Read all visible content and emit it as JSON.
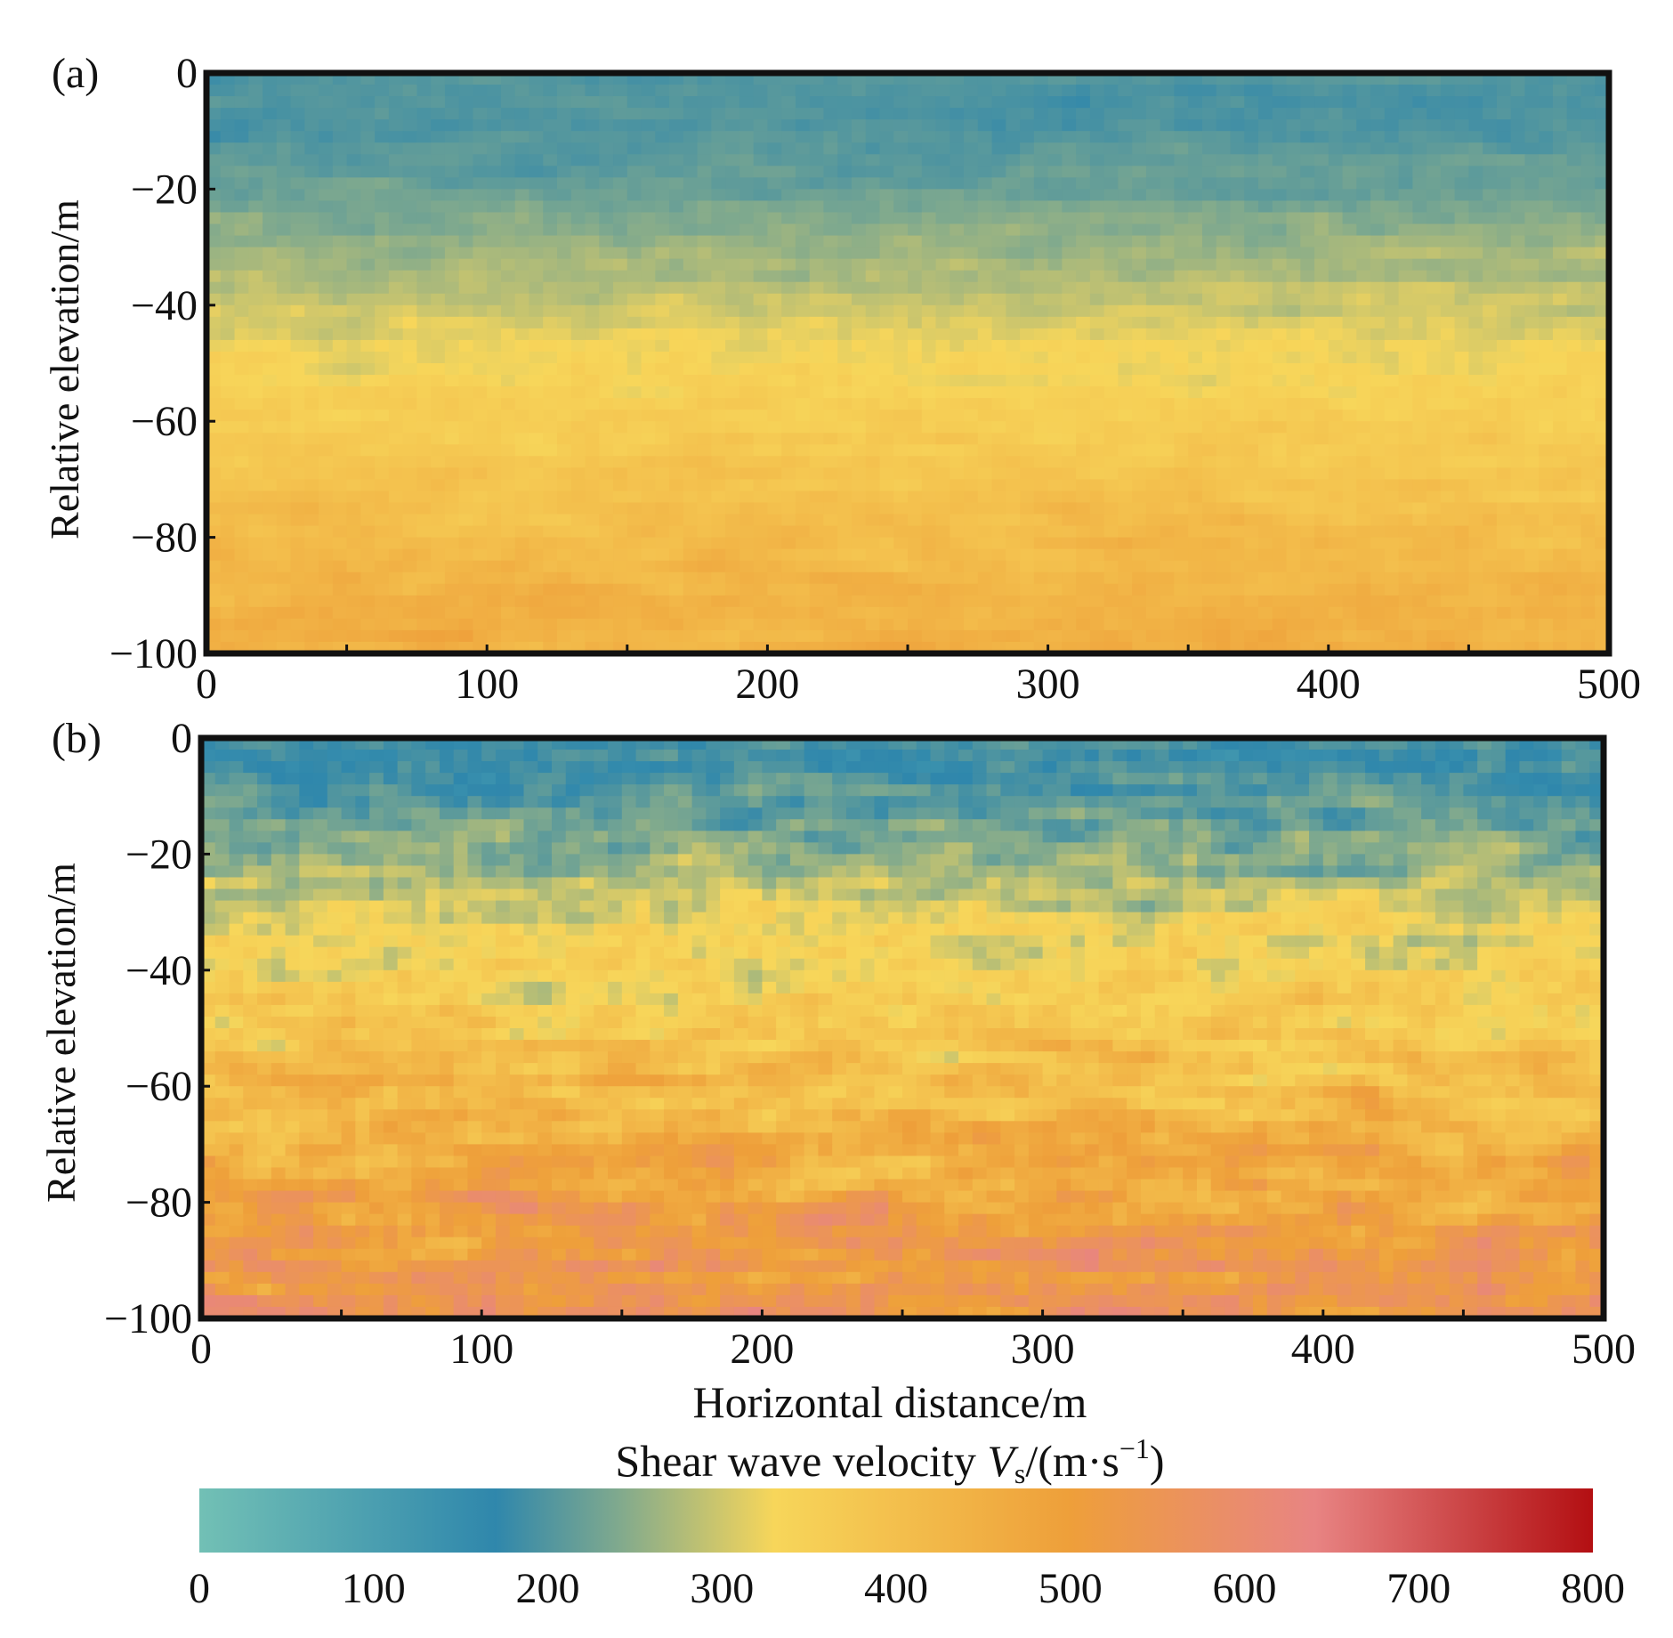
{
  "chart_data": [
    {
      "type": "heatmap",
      "panel_label": "(a)",
      "xlabel": "",
      "ylabel": "Relative elevation/m",
      "xlim": [
        0,
        500
      ],
      "ylim": [
        -100,
        0
      ],
      "x_ticks": [
        0,
        100,
        200,
        300,
        400,
        500
      ],
      "y_ticks": [
        0,
        -20,
        -40,
        -60,
        -80,
        -100
      ],
      "x_tick_labels": [
        "0",
        "100",
        "200",
        "300",
        "400",
        "500"
      ],
      "y_tick_labels": [
        "0",
        "−20",
        "−40",
        "−60",
        "−80",
        "−100"
      ],
      "depth_profile": [
        {
          "elevation": 0,
          "vs": 200
        },
        {
          "elevation": -10,
          "vs": 195
        },
        {
          "elevation": -20,
          "vs": 225
        },
        {
          "elevation": -30,
          "vs": 260
        },
        {
          "elevation": -40,
          "vs": 295
        },
        {
          "elevation": -50,
          "vs": 335
        },
        {
          "elevation": -60,
          "vs": 360
        },
        {
          "elevation": -70,
          "vs": 385
        },
        {
          "elevation": -80,
          "vs": 410
        },
        {
          "elevation": -90,
          "vs": 435
        },
        {
          "elevation": -100,
          "vs": 450
        }
      ],
      "variability": 45
    },
    {
      "type": "heatmap",
      "panel_label": "(b)",
      "xlabel": "Horizontal distance/m",
      "ylabel": "Relative elevation/m",
      "xlim": [
        0,
        500
      ],
      "ylim": [
        -100,
        0
      ],
      "x_ticks": [
        0,
        100,
        200,
        300,
        400,
        500
      ],
      "y_ticks": [
        0,
        -20,
        -40,
        -60,
        -80,
        -100
      ],
      "x_tick_labels": [
        "0",
        "100",
        "200",
        "300",
        "400",
        "500"
      ],
      "y_tick_labels": [
        "0",
        "−20",
        "−40",
        "−60",
        "−80",
        "−100"
      ],
      "depth_profile": [
        {
          "elevation": 0,
          "vs": 185
        },
        {
          "elevation": -10,
          "vs": 195
        },
        {
          "elevation": -20,
          "vs": 250
        },
        {
          "elevation": -30,
          "vs": 310
        },
        {
          "elevation": -40,
          "vs": 340
        },
        {
          "elevation": -50,
          "vs": 370
        },
        {
          "elevation": -60,
          "vs": 410
        },
        {
          "elevation": -70,
          "vs": 450
        },
        {
          "elevation": -80,
          "vs": 490
        },
        {
          "elevation": -90,
          "vs": 530
        },
        {
          "elevation": -100,
          "vs": 560
        }
      ],
      "variability": 120
    }
  ],
  "colorbar": {
    "title_main": "Shear wave velocity ",
    "title_symbol": "V",
    "title_subscript": "s",
    "title_unit_open": "/(m·s",
    "title_exponent": "−1",
    "title_unit_close": ")",
    "range": [
      0,
      800
    ],
    "ticks": [
      0,
      100,
      200,
      300,
      400,
      500,
      600,
      700,
      800
    ],
    "tick_labels": [
      "0",
      "100",
      "200",
      "300",
      "400",
      "500",
      "600",
      "700",
      "800"
    ],
    "stops": [
      {
        "value": 0,
        "color": "#72c0b5"
      },
      {
        "value": 170,
        "color": "#2f87ac"
      },
      {
        "value": 240,
        "color": "#7fa98e"
      },
      {
        "value": 330,
        "color": "#f7d65a"
      },
      {
        "value": 500,
        "color": "#ee9f3a"
      },
      {
        "value": 640,
        "color": "#e88483"
      },
      {
        "value": 800,
        "color": "#b30f12"
      }
    ]
  }
}
